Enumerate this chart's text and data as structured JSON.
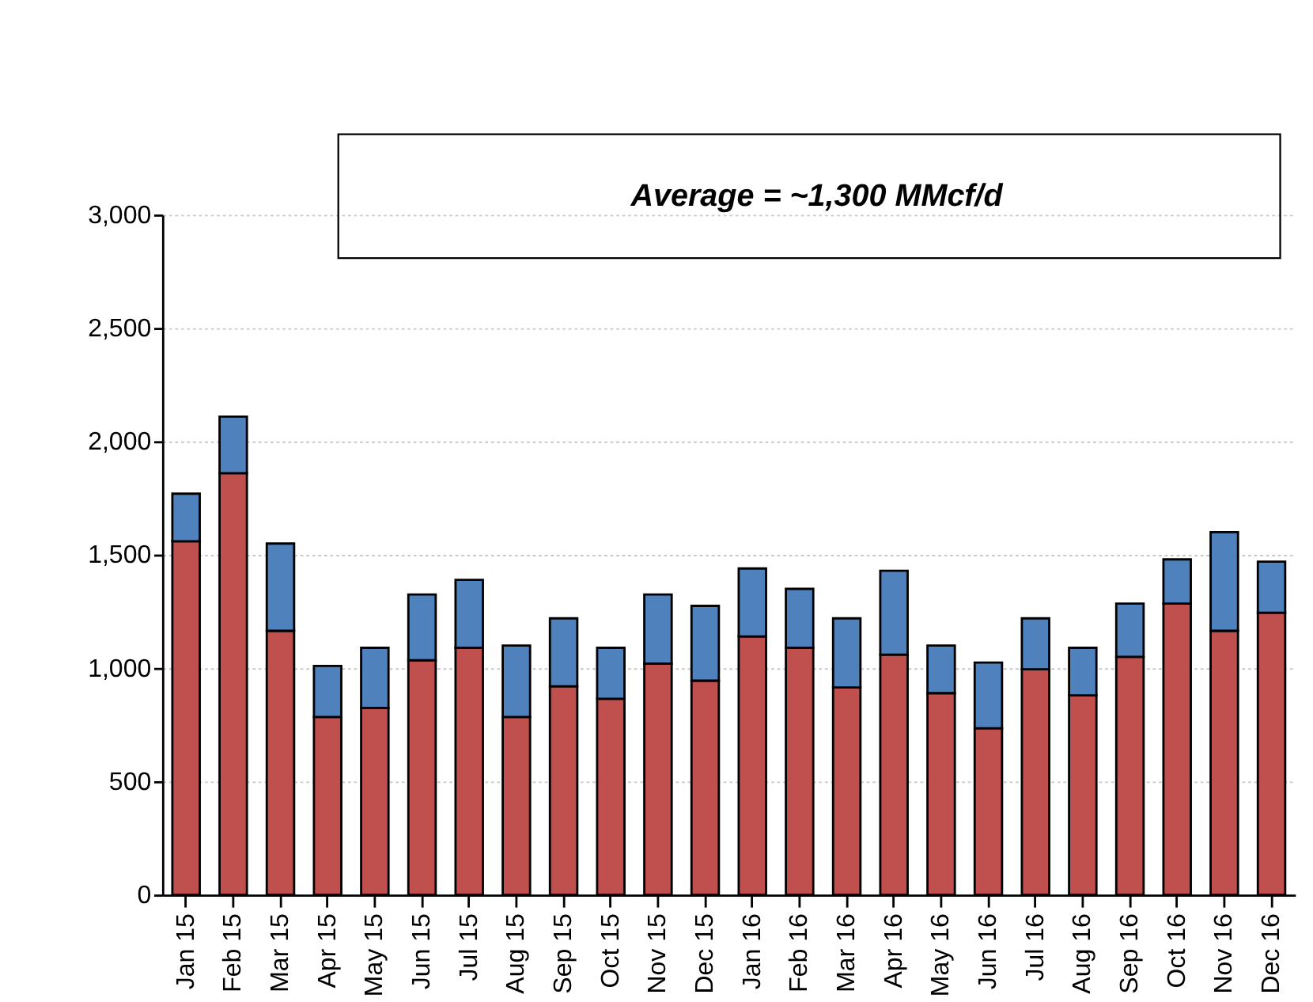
{
  "chart_data": {
    "type": "bar",
    "stacked": true,
    "categories": [
      "Jan 15",
      "Feb 15",
      "Mar 15",
      "Apr 15",
      "May 15",
      "Jun 15",
      "Jul 15",
      "Aug 15",
      "Sep 15",
      "Oct 15",
      "Nov 15",
      "Dec 15",
      "Jan 16",
      "Feb 16",
      "Mar 16",
      "Apr 16",
      "May 16",
      "Jun 16",
      "Jul 16",
      "Aug 16",
      "Sep 16",
      "Oct 16",
      "Nov 16",
      "Dec 16"
    ],
    "series": [
      {
        "color": "#c0504d",
        "values": [
          1560,
          1860,
          1165,
          785,
          825,
          1035,
          1090,
          785,
          920,
          865,
          1020,
          945,
          1140,
          1090,
          915,
          1060,
          890,
          735,
          995,
          880,
          1050,
          1285,
          1165,
          1245
        ]
      },
      {
        "color": "#4f81bd",
        "values": [
          210,
          250,
          385,
          225,
          265,
          290,
          300,
          315,
          300,
          225,
          305,
          330,
          300,
          260,
          305,
          370,
          210,
          290,
          225,
          210,
          235,
          195,
          435,
          225
        ]
      }
    ],
    "ylim": [
      0,
      3000
    ],
    "yticks": [
      {
        "value": 0,
        "label": "0"
      },
      {
        "value": 500,
        "label": "500"
      },
      {
        "value": 1000,
        "label": "1,000"
      },
      {
        "value": 1500,
        "label": "1,500"
      },
      {
        "value": 2000,
        "label": "2,000"
      },
      {
        "value": 2500,
        "label": "2,500"
      },
      {
        "value": 3000,
        "label": "3,000"
      }
    ],
    "grid": "y",
    "annotations": [
      "Average = ~1,300 MMcf/d"
    ]
  }
}
